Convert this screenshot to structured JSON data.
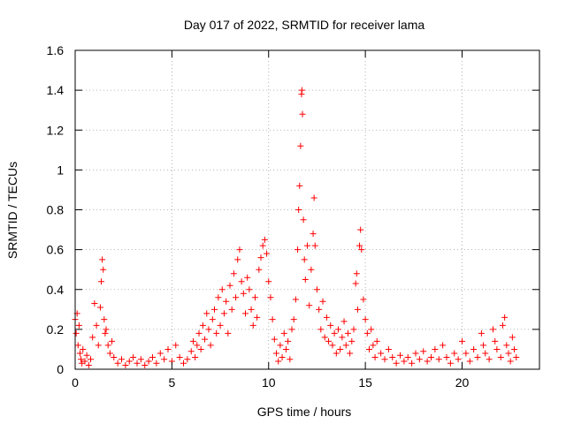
{
  "chart_data": {
    "type": "scatter",
    "title": "Day 017 of 2022, SRMTID for receiver lama",
    "xlabel": "GPS time / hours",
    "ylabel": "SRMTID / TECUs",
    "xlim": [
      0,
      24
    ],
    "ylim": [
      0,
      1.6
    ],
    "xticks": [
      0,
      5,
      10,
      15,
      20
    ],
    "xtick_labels": [
      "0",
      "5",
      "10",
      "15",
      "20"
    ],
    "yticks": [
      0,
      0.2,
      0.4,
      0.6,
      0.8,
      1,
      1.2,
      1.4,
      1.6
    ],
    "ytick_labels": [
      "0",
      "0.2",
      "0.4",
      "0.6",
      "0.8",
      "1",
      "1.2",
      "1.4",
      "1.6"
    ],
    "grid": true,
    "marker": "+",
    "color": "#ff0000",
    "series": [
      {
        "name": "SRMTID",
        "points": [
          [
            0.0,
            0.25
          ],
          [
            0.05,
            0.18
          ],
          [
            0.1,
            0.28
          ],
          [
            0.15,
            0.12
          ],
          [
            0.2,
            0.22
          ],
          [
            0.25,
            0.08
          ],
          [
            0.3,
            0.05
          ],
          [
            0.35,
            0.03
          ],
          [
            0.4,
            0.1
          ],
          [
            0.5,
            0.04
          ],
          [
            0.6,
            0.07
          ],
          [
            0.7,
            0.02
          ],
          [
            0.8,
            0.05
          ],
          [
            0.9,
            0.16
          ],
          [
            1.0,
            0.33
          ],
          [
            1.1,
            0.22
          ],
          [
            1.2,
            0.12
          ],
          [
            1.3,
            0.31
          ],
          [
            1.35,
            0.44
          ],
          [
            1.4,
            0.55
          ],
          [
            1.45,
            0.5
          ],
          [
            1.5,
            0.25
          ],
          [
            1.55,
            0.18
          ],
          [
            1.6,
            0.2
          ],
          [
            1.7,
            0.12
          ],
          [
            1.8,
            0.08
          ],
          [
            1.9,
            0.14
          ],
          [
            2.0,
            0.06
          ],
          [
            2.2,
            0.03
          ],
          [
            2.4,
            0.05
          ],
          [
            2.6,
            0.02
          ],
          [
            2.8,
            0.04
          ],
          [
            3.0,
            0.06
          ],
          [
            3.2,
            0.03
          ],
          [
            3.4,
            0.05
          ],
          [
            3.6,
            0.02
          ],
          [
            3.8,
            0.04
          ],
          [
            4.0,
            0.06
          ],
          [
            4.2,
            0.03
          ],
          [
            4.4,
            0.08
          ],
          [
            4.6,
            0.05
          ],
          [
            4.8,
            0.1
          ],
          [
            5.0,
            0.04
          ],
          [
            5.2,
            0.12
          ],
          [
            5.4,
            0.06
          ],
          [
            5.6,
            0.03
          ],
          [
            5.8,
            0.05
          ],
          [
            6.0,
            0.09
          ],
          [
            6.1,
            0.14
          ],
          [
            6.2,
            0.06
          ],
          [
            6.3,
            0.12
          ],
          [
            6.4,
            0.18
          ],
          [
            6.5,
            0.1
          ],
          [
            6.6,
            0.22
          ],
          [
            6.7,
            0.15
          ],
          [
            6.8,
            0.28
          ],
          [
            6.9,
            0.2
          ],
          [
            7.0,
            0.12
          ],
          [
            7.1,
            0.25
          ],
          [
            7.2,
            0.3
          ],
          [
            7.3,
            0.18
          ],
          [
            7.4,
            0.36
          ],
          [
            7.5,
            0.22
          ],
          [
            7.6,
            0.4
          ],
          [
            7.7,
            0.28
          ],
          [
            7.8,
            0.34
          ],
          [
            7.9,
            0.18
          ],
          [
            8.0,
            0.42
          ],
          [
            8.1,
            0.3
          ],
          [
            8.2,
            0.48
          ],
          [
            8.3,
            0.36
          ],
          [
            8.4,
            0.55
          ],
          [
            8.5,
            0.6
          ],
          [
            8.6,
            0.44
          ],
          [
            8.7,
            0.38
          ],
          [
            8.8,
            0.28
          ],
          [
            8.9,
            0.46
          ],
          [
            9.0,
            0.4
          ],
          [
            9.1,
            0.3
          ],
          [
            9.2,
            0.22
          ],
          [
            9.3,
            0.36
          ],
          [
            9.4,
            0.26
          ],
          [
            9.5,
            0.5
          ],
          [
            9.6,
            0.56
          ],
          [
            9.7,
            0.62
          ],
          [
            9.8,
            0.65
          ],
          [
            9.9,
            0.58
          ],
          [
            10.0,
            0.44
          ],
          [
            10.1,
            0.36
          ],
          [
            10.2,
            0.25
          ],
          [
            10.3,
            0.15
          ],
          [
            10.4,
            0.08
          ],
          [
            10.5,
            0.04
          ],
          [
            10.6,
            0.12
          ],
          [
            10.7,
            0.06
          ],
          [
            10.8,
            0.18
          ],
          [
            10.9,
            0.1
          ],
          [
            11.0,
            0.14
          ],
          [
            11.1,
            0.05
          ],
          [
            11.2,
            0.2
          ],
          [
            11.3,
            0.25
          ],
          [
            11.4,
            0.35
          ],
          [
            11.5,
            0.6
          ],
          [
            11.55,
            0.8
          ],
          [
            11.6,
            0.92
          ],
          [
            11.65,
            1.12
          ],
          [
            11.7,
            1.38
          ],
          [
            11.72,
            1.4
          ],
          [
            11.75,
            1.28
          ],
          [
            11.8,
            0.75
          ],
          [
            11.85,
            0.55
          ],
          [
            11.9,
            0.45
          ],
          [
            12.0,
            0.62
          ],
          [
            12.1,
            0.32
          ],
          [
            12.2,
            0.5
          ],
          [
            12.3,
            0.68
          ],
          [
            12.35,
            0.86
          ],
          [
            12.4,
            0.62
          ],
          [
            12.5,
            0.4
          ],
          [
            12.6,
            0.3
          ],
          [
            12.7,
            0.2
          ],
          [
            12.8,
            0.34
          ],
          [
            12.9,
            0.16
          ],
          [
            13.0,
            0.26
          ],
          [
            13.1,
            0.14
          ],
          [
            13.2,
            0.22
          ],
          [
            13.3,
            0.12
          ],
          [
            13.4,
            0.18
          ],
          [
            13.5,
            0.08
          ],
          [
            13.6,
            0.2
          ],
          [
            13.7,
            0.1
          ],
          [
            13.8,
            0.16
          ],
          [
            13.9,
            0.24
          ],
          [
            14.0,
            0.12
          ],
          [
            14.1,
            0.18
          ],
          [
            14.2,
            0.08
          ],
          [
            14.3,
            0.14
          ],
          [
            14.4,
            0.2
          ],
          [
            14.5,
            0.43
          ],
          [
            14.55,
            0.48
          ],
          [
            14.6,
            0.3
          ],
          [
            14.7,
            0.62
          ],
          [
            14.75,
            0.7
          ],
          [
            14.8,
            0.6
          ],
          [
            14.9,
            0.35
          ],
          [
            15.0,
            0.25
          ],
          [
            15.1,
            0.18
          ],
          [
            15.2,
            0.1
          ],
          [
            15.3,
            0.2
          ],
          [
            15.4,
            0.12
          ],
          [
            15.5,
            0.06
          ],
          [
            15.6,
            0.14
          ],
          [
            15.8,
            0.08
          ],
          [
            16.0,
            0.05
          ],
          [
            16.2,
            0.1
          ],
          [
            16.4,
            0.06
          ],
          [
            16.6,
            0.03
          ],
          [
            16.8,
            0.07
          ],
          [
            17.0,
            0.04
          ],
          [
            17.2,
            0.06
          ],
          [
            17.4,
            0.03
          ],
          [
            17.6,
            0.08
          ],
          [
            17.8,
            0.05
          ],
          [
            18.0,
            0.09
          ],
          [
            18.2,
            0.04
          ],
          [
            18.4,
            0.06
          ],
          [
            18.6,
            0.1
          ],
          [
            18.8,
            0.05
          ],
          [
            19.0,
            0.12
          ],
          [
            19.2,
            0.06
          ],
          [
            19.4,
            0.03
          ],
          [
            19.6,
            0.08
          ],
          [
            19.8,
            0.05
          ],
          [
            20.0,
            0.14
          ],
          [
            20.2,
            0.08
          ],
          [
            20.4,
            0.04
          ],
          [
            20.6,
            0.1
          ],
          [
            20.8,
            0.06
          ],
          [
            21.0,
            0.18
          ],
          [
            21.1,
            0.12
          ],
          [
            21.2,
            0.08
          ],
          [
            21.4,
            0.05
          ],
          [
            21.6,
            0.2
          ],
          [
            21.7,
            0.14
          ],
          [
            21.8,
            0.1
          ],
          [
            22.0,
            0.06
          ],
          [
            22.1,
            0.22
          ],
          [
            22.2,
            0.26
          ],
          [
            22.3,
            0.12
          ],
          [
            22.4,
            0.08
          ],
          [
            22.5,
            0.04
          ],
          [
            22.6,
            0.16
          ],
          [
            22.7,
            0.1
          ],
          [
            22.8,
            0.06
          ]
        ]
      }
    ]
  }
}
